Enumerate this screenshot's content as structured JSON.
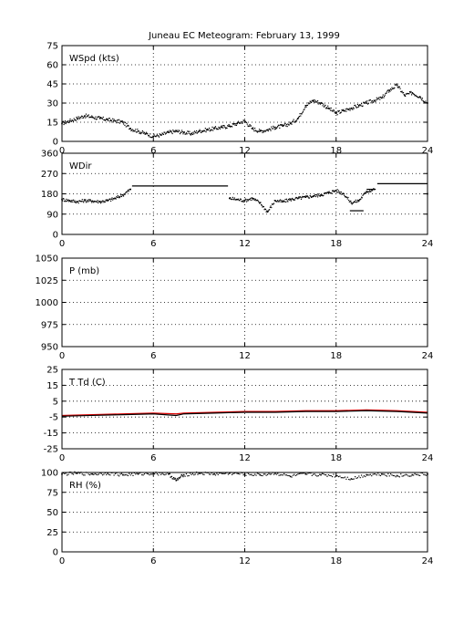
{
  "colors": {
    "background": "#ffffff",
    "axes": "#000000",
    "trace": "#000000",
    "dewpoint": "#dd0000"
  },
  "chart_data": {
    "type": "scatter",
    "title": "Juneau EC Meteogram:  February 13, 1999",
    "panels": [
      {
        "label": "WSpd (kts)",
        "xlim": [
          0,
          24
        ],
        "xticks": [
          0,
          6,
          12,
          18,
          24
        ],
        "ylim": [
          0,
          75
        ],
        "yticks": [
          0,
          15,
          30,
          45,
          60,
          75
        ],
        "grid": true,
        "series": [
          {
            "style": "dots",
            "color": "#000000",
            "x": [
              0,
              0.5,
              1,
              1.5,
              2,
              2.5,
              3,
              3.5,
              4,
              4.5,
              5,
              5.5,
              6,
              6.5,
              7,
              7.5,
              8,
              8.5,
              9,
              9.5,
              10,
              10.5,
              11,
              11.5,
              12,
              12.5,
              13,
              13.5,
              14,
              14.5,
              15,
              15.5,
              16,
              16.5,
              17,
              17.5,
              18,
              18.5,
              19,
              19.5,
              20,
              20.5,
              21,
              21.5,
              22,
              22.5,
              23,
              23.5,
              24
            ],
            "y": [
              14,
              16,
              18,
              20,
              19,
              18,
              17,
              16,
              15,
              10,
              8,
              6,
              4,
              5,
              7,
              8,
              7,
              6,
              8,
              9,
              10,
              11,
              12,
              14,
              16,
              10,
              8,
              9,
              11,
              12,
              14,
              18,
              28,
              32,
              30,
              26,
              22,
              24,
              26,
              28,
              30,
              32,
              34,
              40,
              44,
              36,
              38,
              35,
              30
            ]
          }
        ]
      },
      {
        "label": "WDir",
        "xlim": [
          0,
          24
        ],
        "xticks": [
          0,
          6,
          12,
          18,
          24
        ],
        "ylim": [
          0,
          360
        ],
        "yticks": [
          0,
          90,
          180,
          270,
          360
        ],
        "grid": true,
        "series": [
          {
            "style": "dots",
            "color": "#000000",
            "x": [
              0,
              0.5,
              1,
              1.5,
              2,
              2.5,
              3,
              3.5,
              4,
              4.5,
              11,
              11.5,
              12,
              12.5,
              13,
              13.5,
              14,
              14.5,
              15,
              15.5,
              16,
              16.5,
              17,
              17.5,
              18,
              18.5,
              19,
              19.5,
              20,
              20.5,
              24
            ],
            "y": [
              155,
              150,
              145,
              150,
              148,
              145,
              150,
              160,
              175,
              200,
              160,
              155,
              150,
              160,
              140,
              100,
              150,
              145,
              155,
              160,
              165,
              170,
              175,
              185,
              195,
              180,
              140,
              150,
              190,
              200,
              180
            ]
          },
          {
            "style": "line",
            "color": "#000000",
            "x": [
              4.6,
              10.9
            ],
            "y": [
              215,
              215
            ]
          },
          {
            "style": "line",
            "color": "#000000",
            "x": [
              18.9,
              19.8
            ],
            "y": [
              105,
              105
            ]
          },
          {
            "style": "line",
            "color": "#000000",
            "x": [
              20.0,
              20.6
            ],
            "y": [
              200,
              200
            ]
          },
          {
            "style": "line",
            "color": "#000000",
            "x": [
              20.7,
              24
            ],
            "y": [
              225,
              225
            ]
          }
        ]
      },
      {
        "label": "P (mb)",
        "xlim": [
          0,
          24
        ],
        "xticks": [
          0,
          6,
          12,
          18,
          24
        ],
        "ylim": [
          950,
          1050
        ],
        "yticks": [
          950,
          975,
          1000,
          1025,
          1050
        ],
        "grid": true,
        "series": []
      },
      {
        "label": "T Td (C)",
        "xlim": [
          0,
          24
        ],
        "xticks": [
          0,
          6,
          12,
          18,
          24
        ],
        "ylim": [
          -25,
          25
        ],
        "yticks": [
          -25,
          -15,
          -5,
          5,
          15,
          25
        ],
        "grid": true,
        "series": [
          {
            "style": "line",
            "color": "#dd0000",
            "x": [
              0,
              2,
              4,
              6,
              7.5,
              8,
              10,
              12,
              14,
              16,
              18,
              20,
              22,
              24
            ],
            "y": [
              -4,
              -3.5,
              -3,
              -2.5,
              -3,
              -2.5,
              -2,
              -1.5,
              -1.5,
              -1,
              -1,
              -0.5,
              -1,
              -2
            ]
          },
          {
            "style": "line",
            "color": "#000000",
            "x": [
              0,
              2,
              4,
              6,
              7.5,
              8,
              10,
              12,
              14,
              16,
              18,
              20,
              22,
              24
            ],
            "y": [
              -4.5,
              -4,
              -3.5,
              -3,
              -4,
              -3,
              -2.5,
              -2,
              -2,
              -1.5,
              -1.5,
              -1,
              -1.5,
              -2.5
            ]
          }
        ]
      },
      {
        "label": "RH (%)",
        "xlim": [
          0,
          24
        ],
        "xticks": [
          0,
          6,
          12,
          18,
          24
        ],
        "ylim": [
          0,
          100
        ],
        "yticks": [
          0,
          25,
          50,
          75,
          100
        ],
        "grid": true,
        "series": [
          {
            "style": "dots",
            "color": "#000000",
            "x": [
              0,
              1,
              2,
              3,
              4,
              5,
              6,
              7,
              7.5,
              8,
              9,
              10,
              11,
              12,
              13,
              14,
              15,
              16,
              17,
              18,
              19,
              20,
              21,
              22,
              23,
              24
            ],
            "y": [
              98,
              99,
              98,
              99,
              97,
              98,
              99,
              98,
              90,
              97,
              99,
              98,
              99,
              98,
              97,
              99,
              95,
              98,
              97,
              96,
              92,
              97,
              98,
              96,
              97,
              98
            ]
          }
        ]
      }
    ]
  }
}
